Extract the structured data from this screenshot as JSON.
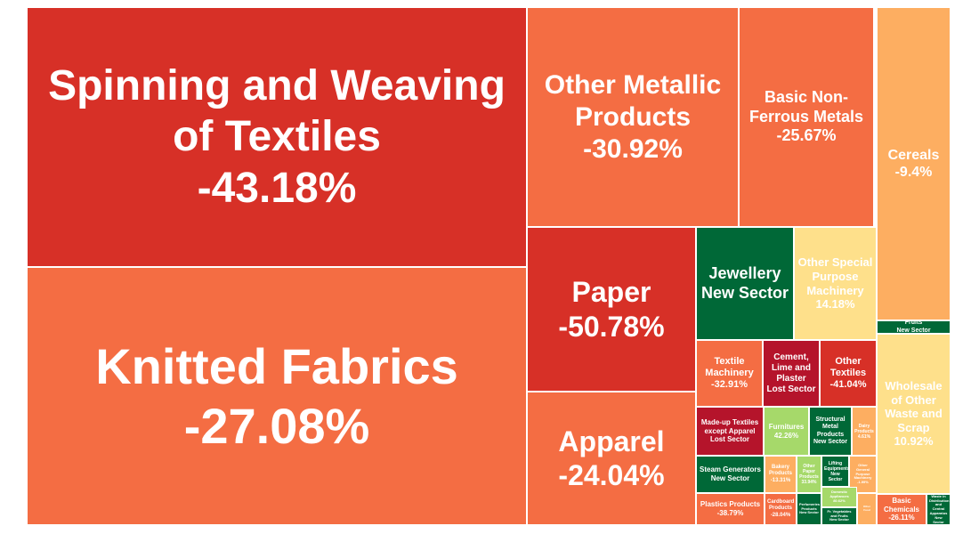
{
  "chart_data": {
    "type": "treemap",
    "colors": {
      "strong_negative": "#d73027",
      "deep_negative": "#b5142b",
      "negative": "#f46d43",
      "mild_negative": "#fdae61",
      "mild_positive": "#fee08b",
      "positive": "#a6d96a",
      "strong_positive": "#1a9850",
      "deep_positive": "#006837"
    },
    "tiles": [
      {
        "name": "Spinning and Weaving of Textiles",
        "value": "-43.18%",
        "color": "strong_negative"
      },
      {
        "name": "Knitted Fabrics",
        "value": "-27.08%",
        "color": "negative"
      },
      {
        "name": "Other Metallic Products",
        "value": "-30.92%",
        "color": "negative"
      },
      {
        "name": "Basic Non-Ferrous Metals",
        "value": "-25.67%",
        "color": "negative"
      },
      {
        "name": "Cereals",
        "value": "-9.4%",
        "color": "mild_negative"
      },
      {
        "name": "Fruits",
        "value": "New Sector",
        "color": "deep_positive"
      },
      {
        "name": "Wholesale of Other Waste and Scrap",
        "value": "10.92%",
        "color": "mild_positive"
      },
      {
        "name": "Basic Chemicals",
        "value": "-26.11%",
        "color": "negative"
      },
      {
        "name": "Waste in Distribution and Central Apparatus",
        "value": "New Sector",
        "color": "deep_positive"
      },
      {
        "name": "Paper",
        "value": "-50.78%",
        "color": "strong_negative"
      },
      {
        "name": "Apparel",
        "value": "-24.04%",
        "color": "negative"
      },
      {
        "name": "Jewellery",
        "value": "New Sector",
        "color": "deep_positive"
      },
      {
        "name": "Other Special Purpose Machinery",
        "value": "14.18%",
        "color": "mild_positive"
      },
      {
        "name": "Textile Machinery",
        "value": "-32.91%",
        "color": "negative"
      },
      {
        "name": "Cement, Lime and Plaster",
        "value": "Lost Sector",
        "color": "deep_negative"
      },
      {
        "name": "Other Textiles",
        "value": "-41.04%",
        "color": "strong_negative"
      },
      {
        "name": "Made-up Textiles except Apparel",
        "value": "Lost Sector",
        "color": "deep_negative"
      },
      {
        "name": "Furnitures",
        "value": "42.26%",
        "color": "positive"
      },
      {
        "name": "Structural Metal Products",
        "value": "New Sector",
        "color": "deep_positive"
      },
      {
        "name": "Dairy Products",
        "value": "4.61%",
        "color": "mild_negative"
      },
      {
        "name": "Steam Generators",
        "value": "New Sector",
        "color": "deep_positive"
      },
      {
        "name": "Bakery Products",
        "value": "-13.31%",
        "color": "mild_negative"
      },
      {
        "name": "Other Paper Products",
        "value": "33.94%",
        "color": "positive"
      },
      {
        "name": "Lifting Equipments",
        "value": "New Sector",
        "color": "deep_positive"
      },
      {
        "name": "Other General Purpose Machinery",
        "value": "-1.99%",
        "color": "mild_negative"
      },
      {
        "name": "Plastics Products",
        "value": "-38.79%",
        "color": "negative"
      },
      {
        "name": "Cardboard Products",
        "value": "-28.04%",
        "color": "negative"
      },
      {
        "name": "Perfumeries Products",
        "value": "New Sector",
        "color": "deep_positive"
      },
      {
        "name": "Domestic Appliances",
        "value": "80.62%",
        "color": "positive"
      },
      {
        "name": "Fr. Vegetables and Fruits",
        "value": "New Sector",
        "color": "deep_positive"
      },
      {
        "name": "Other Food",
        "value": "",
        "color": "mild_negative"
      }
    ]
  }
}
